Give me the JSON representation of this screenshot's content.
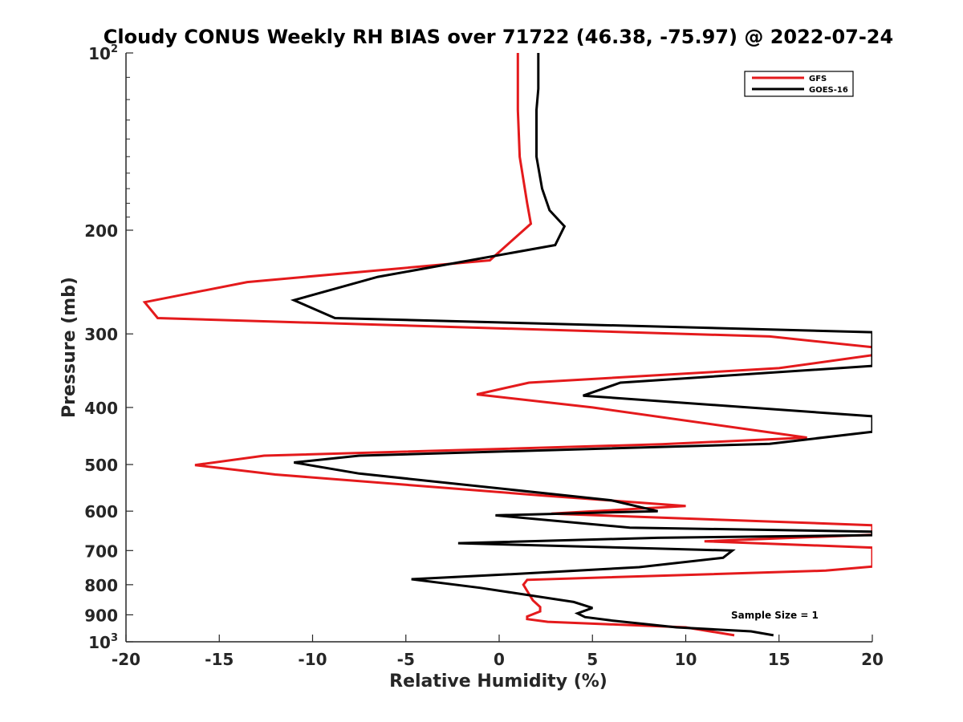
{
  "chart_data": {
    "type": "line",
    "title": "Cloudy CONUS Weekly RH BIAS over 71722 (46.38, -75.97) @ 2022-07-24",
    "xlabel": "Relative Humidity (%)",
    "ylabel": "Pressure (mb)",
    "xlim": [
      -20,
      20
    ],
    "ylim": [
      100,
      1000
    ],
    "yscale": "log",
    "yreversed": true,
    "xticks": [
      -20,
      -15,
      -10,
      -5,
      0,
      5,
      10,
      15,
      20
    ],
    "xtick_labels": [
      "-20",
      "-15",
      "-10",
      "-5",
      "0",
      "5",
      "10",
      "15",
      "20"
    ],
    "yticks": [
      {
        "value": 100,
        "base": "10",
        "exp": "2"
      },
      {
        "value": 200,
        "label": "200"
      },
      {
        "value": 300,
        "label": "300"
      },
      {
        "value": 400,
        "label": "400"
      },
      {
        "value": 500,
        "label": "500"
      },
      {
        "value": 600,
        "label": "600"
      },
      {
        "value": 700,
        "label": "700"
      },
      {
        "value": 800,
        "label": "800"
      },
      {
        "value": 900,
        "label": "900"
      },
      {
        "value": 1000,
        "base": "10",
        "exp": "3"
      }
    ],
    "legend_position": "top-right",
    "annotation": "Sample Size = 1",
    "series": [
      {
        "name": "GFS",
        "color": "#e41a1c",
        "points": [
          [
            1.0,
            100
          ],
          [
            1.0,
            125
          ],
          [
            1.1,
            150
          ],
          [
            1.5,
            180
          ],
          [
            1.7,
            195
          ],
          [
            -0.5,
            225
          ],
          [
            -13.5,
            245
          ],
          [
            -19,
            265
          ],
          [
            -18.3,
            282
          ],
          [
            14.5,
            303
          ],
          [
            20,
            316
          ],
          [
            20,
            326
          ],
          [
            15,
            343
          ],
          [
            1.6,
            363
          ],
          [
            -1.2,
            380
          ],
          [
            5.0,
            400
          ],
          [
            16.5,
            450
          ],
          [
            8.7,
            462
          ],
          [
            -12.6,
            483
          ],
          [
            -16.3,
            501
          ],
          [
            -12.0,
            520
          ],
          [
            2.5,
            565
          ],
          [
            10.0,
            588
          ],
          [
            2.8,
            606
          ],
          [
            20,
            634
          ],
          [
            20,
            658
          ],
          [
            11.0,
            675
          ],
          [
            20,
            692
          ],
          [
            20,
            745
          ],
          [
            17.5,
            757
          ],
          [
            1.5,
            785
          ],
          [
            1.3,
            800
          ],
          [
            1.8,
            850
          ],
          [
            2.2,
            873
          ],
          [
            2.2,
            888
          ],
          [
            1.5,
            906
          ],
          [
            1.5,
            915
          ],
          [
            2.6,
            925
          ],
          [
            10.0,
            945
          ],
          [
            12.6,
            975
          ]
        ]
      },
      {
        "name": "GOES-16",
        "color": "#000000",
        "points": [
          [
            2.1,
            100
          ],
          [
            2.1,
            115
          ],
          [
            2.0,
            125
          ],
          [
            2.0,
            150
          ],
          [
            2.3,
            170
          ],
          [
            2.7,
            185
          ],
          [
            3.5,
            197
          ],
          [
            3.0,
            212
          ],
          [
            -6.5,
            240
          ],
          [
            -11,
            263
          ],
          [
            -8.8,
            282
          ],
          [
            20,
            298
          ],
          [
            20,
            340
          ],
          [
            6.5,
            363
          ],
          [
            4.5,
            382
          ],
          [
            20,
            414
          ],
          [
            20,
            440
          ],
          [
            14.5,
            461
          ],
          [
            -7.5,
            483
          ],
          [
            -11.0,
            496
          ],
          [
            -7.5,
            518
          ],
          [
            6.0,
            575
          ],
          [
            8.5,
            600
          ],
          [
            -0.2,
            610
          ],
          [
            7.0,
            640
          ],
          [
            20,
            650
          ],
          [
            20,
            659
          ],
          [
            8.5,
            666
          ],
          [
            -2.2,
            680
          ],
          [
            12.5,
            700
          ],
          [
            12.0,
            720
          ],
          [
            7.5,
            747
          ],
          [
            0.5,
            768
          ],
          [
            -4.7,
            783
          ],
          [
            -1.0,
            810
          ],
          [
            4.0,
            856
          ],
          [
            5.0,
            876
          ],
          [
            4.2,
            895
          ],
          [
            4.6,
            908
          ],
          [
            6.0,
            920
          ],
          [
            9.5,
            945
          ],
          [
            13.5,
            960
          ],
          [
            14.7,
            975
          ]
        ]
      }
    ]
  }
}
